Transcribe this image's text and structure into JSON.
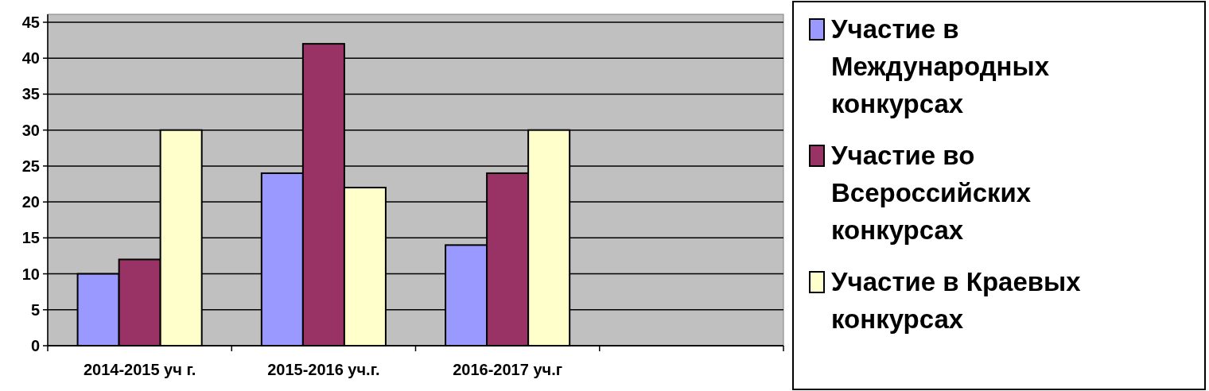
{
  "chart_data": {
    "type": "bar",
    "categories": [
      "2014-2015 уч г.",
      "2015-2016 уч.г.",
      "2016-2017 уч.г",
      null
    ],
    "series": [
      {
        "name": "Участие в Международных конкурсах",
        "color": "#9999ff",
        "values": [
          10,
          24,
          14,
          null
        ]
      },
      {
        "name": "Участие во Всероссийских конкурсах",
        "color": "#993366",
        "values": [
          12,
          42,
          24,
          null
        ]
      },
      {
        "name": "Участие в Краевых конкурсах",
        "color": "#ffffcc",
        "values": [
          30,
          22,
          30,
          null
        ]
      }
    ],
    "ylim": [
      0,
      45
    ],
    "yticks": [
      0,
      5,
      10,
      15,
      20,
      25,
      30,
      35,
      40,
      45
    ],
    "grid": "y",
    "legend": "right"
  }
}
